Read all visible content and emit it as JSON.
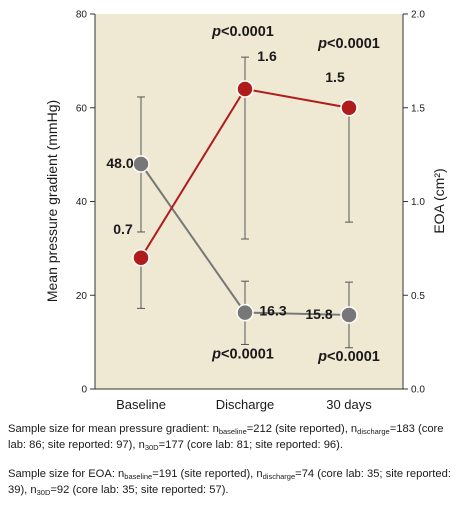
{
  "chart_data": {
    "type": "line",
    "categories": [
      "Baseline",
      "Discharge",
      "30 days"
    ],
    "y_left": {
      "label": "Mean pressure gradient (mmHg)",
      "ylim": [
        0,
        80
      ],
      "ticks": [
        0,
        20,
        40,
        60,
        80
      ]
    },
    "y_right": {
      "label": "EOA (cm²)",
      "ylim": [
        0.0,
        2.0
      ],
      "ticks": [
        "0.0",
        "0.5",
        "1.0",
        "1.5",
        "2.0"
      ]
    },
    "series": [
      {
        "axis": "left",
        "color": "#777777",
        "values": [
          48.0,
          16.3,
          15.8
        ],
        "value_labels": [
          "48.0",
          "16.3",
          "15.8"
        ],
        "err_low": [
          33.5,
          9.5,
          8.8
        ],
        "err_high": [
          62.3,
          23.0,
          22.8
        ],
        "p_values": [
          "",
          "p<0.0001",
          "p<0.0001"
        ]
      },
      {
        "axis": "right",
        "color": "#b01c1c",
        "values": [
          0.7,
          1.6,
          1.5
        ],
        "value_labels": [
          "0.7",
          "1.6",
          "1.5"
        ],
        "err_low": [
          0.43,
          0.8,
          0.89
        ],
        "err_high": [
          0.72,
          1.77,
          1.52
        ],
        "p_values": [
          "",
          "p<0.0001",
          "p<0.0001"
        ]
      }
    ],
    "grid": false,
    "plot_background": "#efe9d4"
  },
  "caption": {
    "gradient": {
      "lead": "Sample size for mean pressure gradient: n",
      "sub1": "baseline",
      "t1": "=212 (site reported), n",
      "sub2": "discharge",
      "t2": "=183 (core lab: 86; site reported: 97), n",
      "sub3": "30D",
      "t3": "=177 (core lab: 81; site reported: 96)."
    },
    "eoa": {
      "lead": "Sample size for EOA: n",
      "sub1": "baseline",
      "t1": "=191 (site reported), n",
      "sub2": "discharge",
      "t2": "=74 (core lab: 35; site reported: 39), n",
      "sub3": "30D",
      "t3": "=92 (core lab: 35; site reported: 57)."
    }
  }
}
